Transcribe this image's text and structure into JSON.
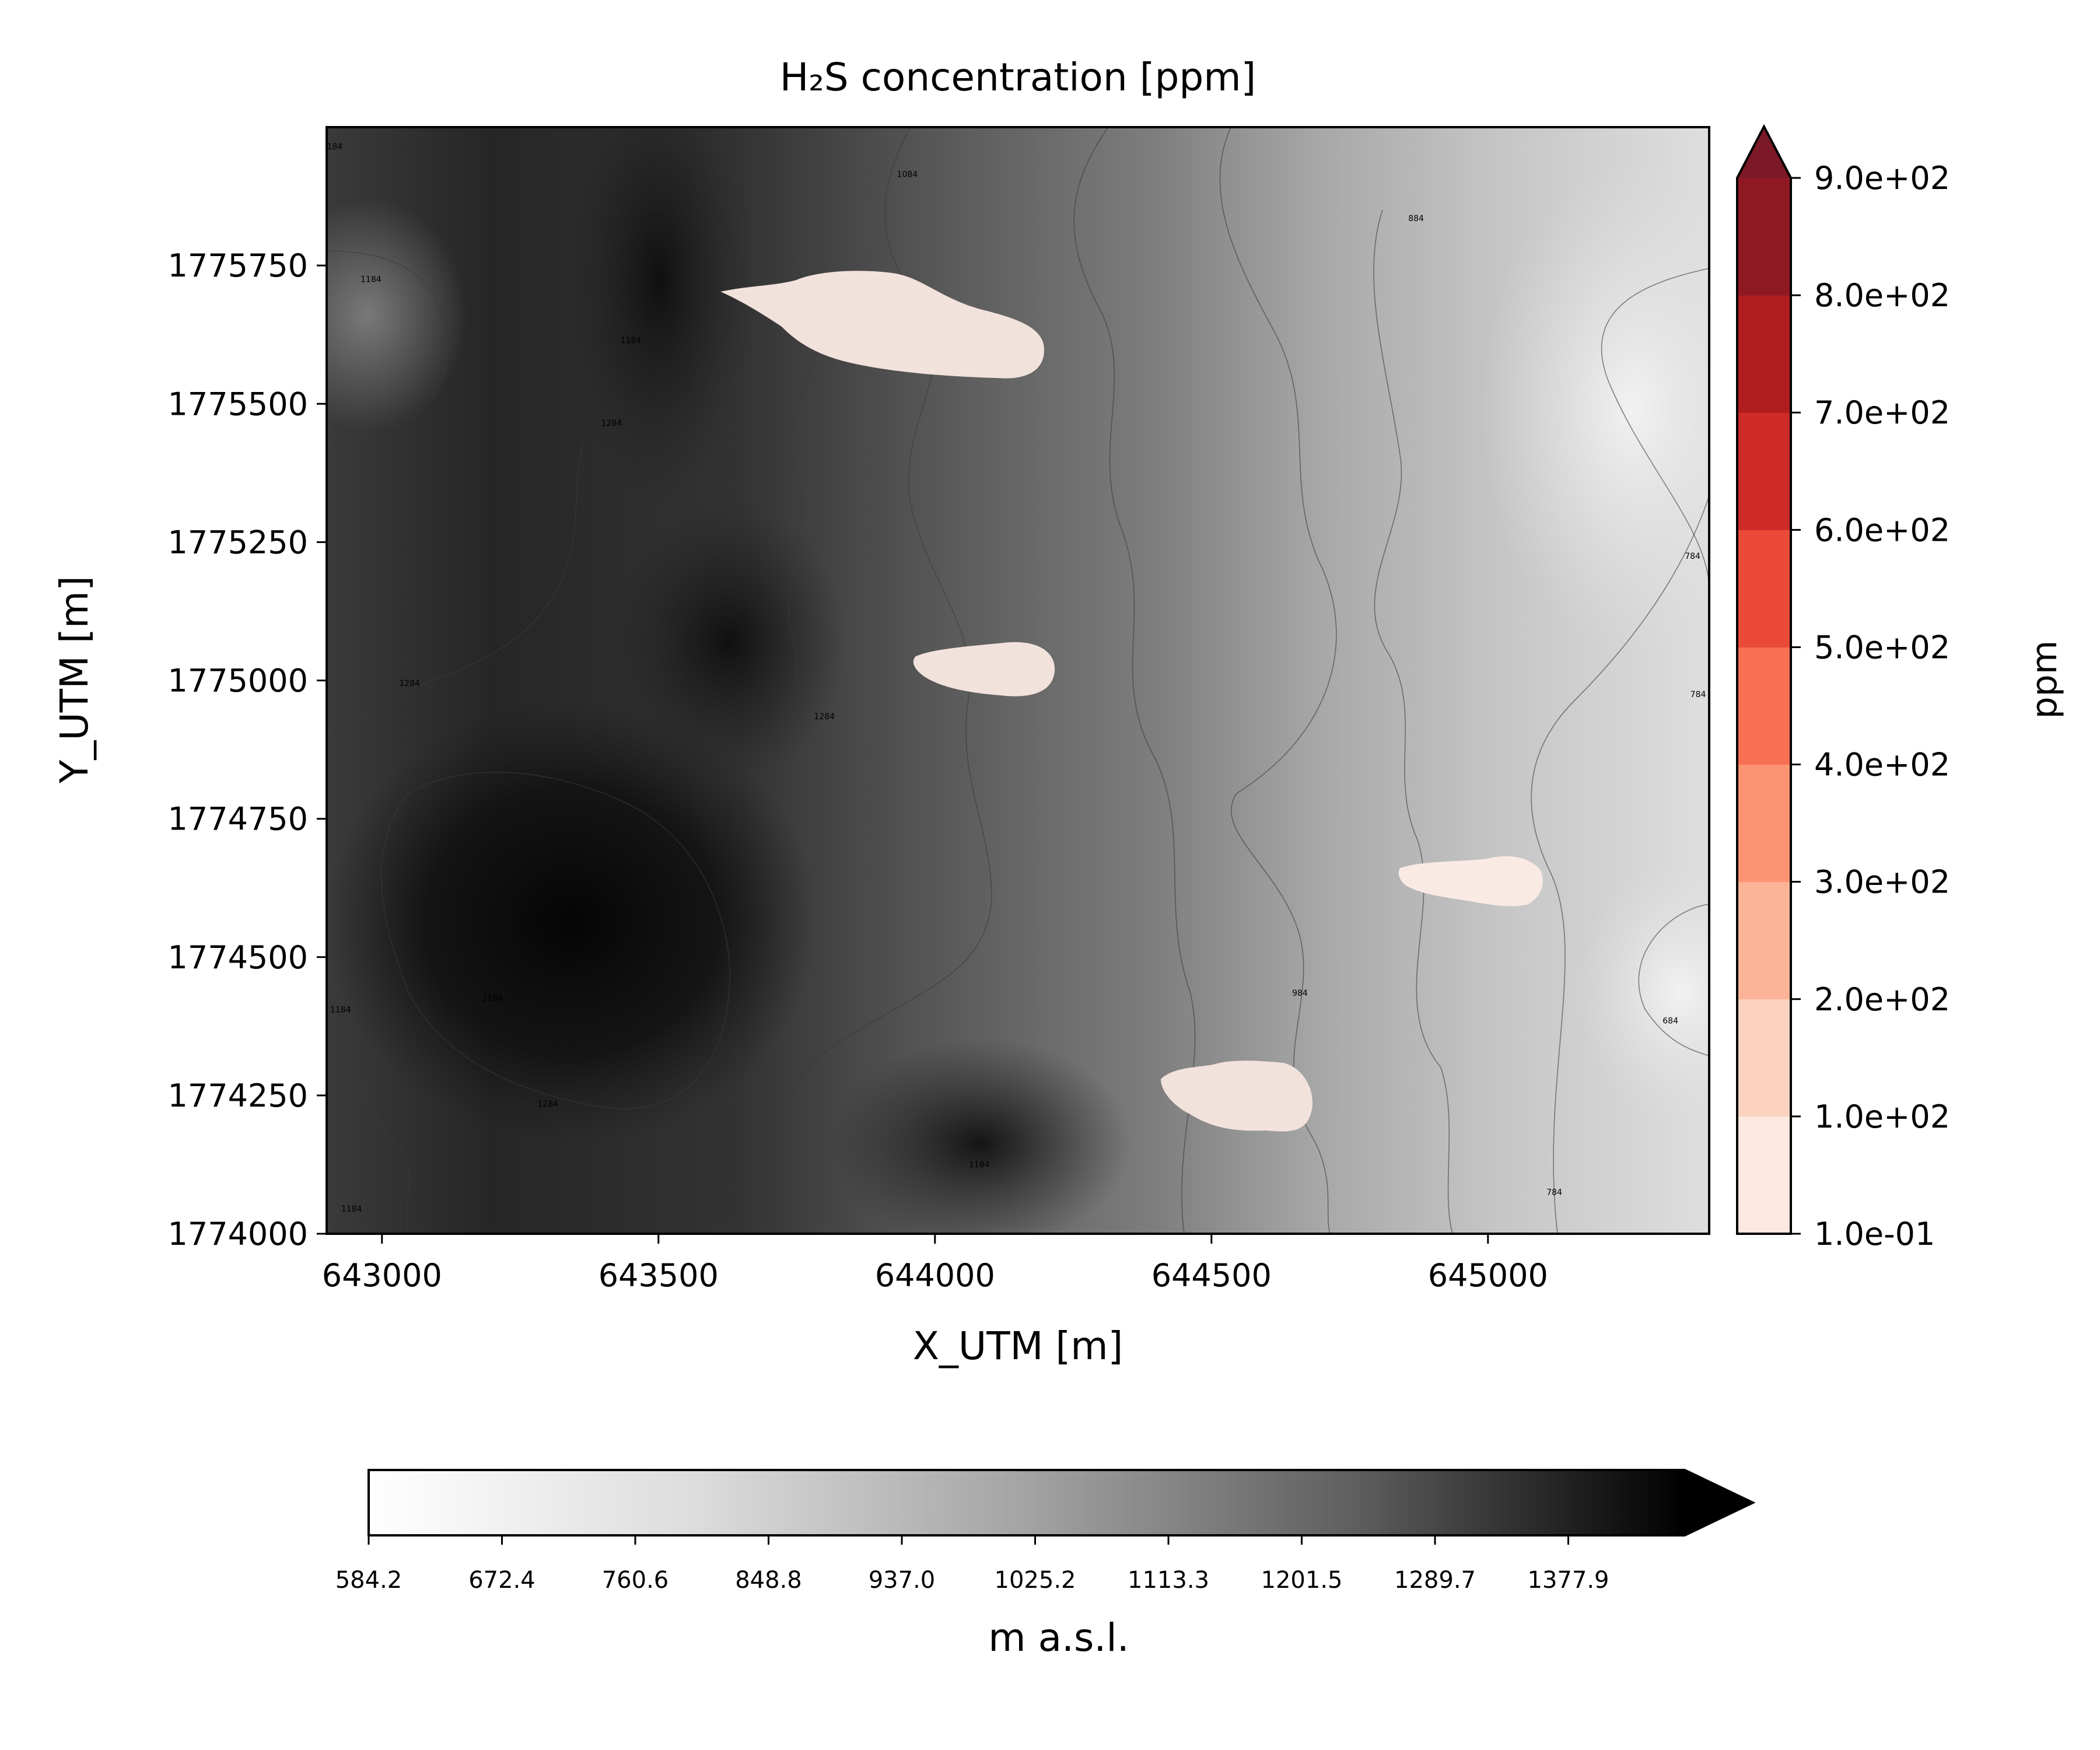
{
  "chart_data": {
    "type": "heatmap",
    "title": "H₂S concentration [ppm]",
    "xlabel": "X_UTM [m]",
    "ylabel": "Y_UTM [m]",
    "xlim": [
      642900,
      645400
    ],
    "ylim": [
      1774000,
      1776000
    ],
    "xticks": [
      643000,
      643500,
      644000,
      644500,
      645000
    ],
    "xtick_labels": [
      "643000",
      "643500",
      "644000",
      "644500",
      "645000"
    ],
    "yticks": [
      1774000,
      1774250,
      1774500,
      1774750,
      1775000,
      1775250,
      1775500,
      1775750
    ],
    "ytick_labels": [
      "1774000",
      "1774250",
      "1774500",
      "1774750",
      "1775000",
      "1775250",
      "1775500",
      "1775750"
    ],
    "terrain": {
      "colormap": "Greys",
      "label": "m a.s.l.",
      "ticks": [
        584.2,
        672.4,
        760.6,
        848.8,
        937.0,
        1025.2,
        1113.3,
        1201.5,
        1289.7,
        1377.9
      ],
      "tick_labels": [
        "584.2",
        "672.4",
        "760.6",
        "848.8",
        "937.0",
        "1025.2",
        "1113.3",
        "1201.5",
        "1289.7",
        "1377.9"
      ],
      "extend": "max",
      "contour_labels": [
        {
          "x": 642910,
          "y": 1775960,
          "text": "1184"
        },
        {
          "x": 642980,
          "y": 1775720,
          "text": "1184"
        },
        {
          "x": 643450,
          "y": 1775610,
          "text": "1184"
        },
        {
          "x": 643415,
          "y": 1775460,
          "text": "1284"
        },
        {
          "x": 643050,
          "y": 1774990,
          "text": "1284"
        },
        {
          "x": 643800,
          "y": 1774930,
          "text": "1284"
        },
        {
          "x": 643950,
          "y": 1775910,
          "text": "1084"
        },
        {
          "x": 643970,
          "y": 1775620,
          "text": "1184"
        },
        {
          "x": 644870,
          "y": 1775830,
          "text": "884"
        },
        {
          "x": 645370,
          "y": 1775220,
          "text": "784"
        },
        {
          "x": 645380,
          "y": 1774970,
          "text": "784"
        },
        {
          "x": 644660,
          "y": 1774430,
          "text": "984"
        },
        {
          "x": 645330,
          "y": 1774380,
          "text": "684"
        },
        {
          "x": 645120,
          "y": 1774070,
          "text": "784"
        },
        {
          "x": 643200,
          "y": 1774420,
          "text": "1184"
        },
        {
          "x": 642925,
          "y": 1774400,
          "text": "1184"
        },
        {
          "x": 643300,
          "y": 1774230,
          "text": "1284"
        },
        {
          "x": 644080,
          "y": 1774120,
          "text": "1184"
        },
        {
          "x": 642945,
          "y": 1774040,
          "text": "1184"
        }
      ]
    },
    "concentration": {
      "colormap": "Reds",
      "label": "ppm",
      "levels": [
        0.1,
        100,
        200,
        300,
        400,
        500,
        600,
        700,
        800,
        900
      ],
      "tick_labels": [
        "1.0e-01",
        "1.0e+02",
        "2.0e+02",
        "3.0e+02",
        "4.0e+02",
        "5.0e+02",
        "6.0e+02",
        "7.0e+02",
        "8.0e+02",
        "9.0e+02"
      ],
      "colors": [
        "#fee8e0",
        "#fcd3c1",
        "#fcb499",
        "#fc9474",
        "#f86f54",
        "#ea4a37",
        "#cf2b27",
        "#b11d1f",
        "#8f1922",
        "#7b1a26"
      ],
      "extend": "max",
      "plumes": [
        {
          "center": [
            643820,
            1775640
          ],
          "value": 50
        },
        {
          "center": [
            644060,
            1775020
          ],
          "value": 50
        },
        {
          "center": [
            644530,
            1774240
          ],
          "value": 50
        },
        {
          "center": [
            645000,
            1774620
          ],
          "value": 30
        }
      ]
    }
  }
}
